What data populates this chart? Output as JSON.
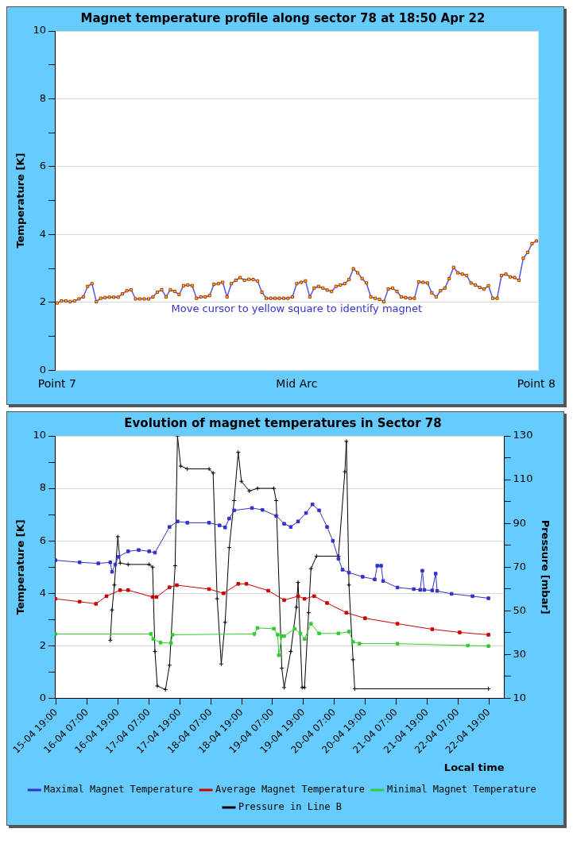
{
  "chart_data": [
    {
      "type": "line",
      "title": "Magnet temperature profile along sector 78 at 18:50 Apr 22",
      "ylabel": "Temperature [K]",
      "categories": [
        "Point 7",
        null,
        null,
        null,
        null,
        null,
        null,
        null,
        null,
        null,
        null,
        null,
        null,
        null,
        null,
        null,
        null,
        null,
        null,
        null,
        null,
        null,
        null,
        null,
        null,
        null,
        null,
        null,
        null,
        null,
        null,
        null,
        null,
        null,
        null,
        null,
        null,
        null,
        null,
        null,
        null,
        null,
        null,
        null,
        null,
        null,
        null,
        null,
        null,
        null,
        null,
        null,
        null,
        null,
        null,
        "Mid Arc",
        null,
        null,
        null,
        null,
        null,
        null,
        null,
        null,
        null,
        null,
        null,
        null,
        null,
        null,
        null,
        null,
        null,
        null,
        null,
        null,
        null,
        null,
        null,
        null,
        null,
        null,
        null,
        null,
        null,
        null,
        null,
        null,
        null,
        null,
        null,
        null,
        null,
        null,
        null,
        null,
        null,
        null,
        null,
        null,
        null,
        null,
        null,
        null,
        null,
        null,
        null,
        null,
        null,
        null,
        "Point 8"
      ],
      "series": [
        {
          "color": "#ffcc00",
          "values": [
            1.98,
            2.04,
            2.04,
            2.02,
            2.04,
            2.1,
            2.16,
            2.47,
            2.55,
            2.02,
            2.12,
            2.14,
            2.15,
            2.15,
            2.15,
            2.25,
            2.34,
            2.37,
            2.1,
            2.1,
            2.1,
            2.1,
            2.16,
            2.3,
            2.37,
            2.16,
            2.37,
            2.32,
            2.23,
            2.49,
            2.51,
            2.49,
            2.12,
            2.16,
            2.16,
            2.2,
            2.53,
            2.55,
            2.59,
            2.16,
            2.55,
            2.65,
            2.73,
            2.65,
            2.68,
            2.67,
            2.63,
            2.3,
            2.12,
            2.12,
            2.12,
            2.12,
            2.12,
            2.12,
            2.16,
            2.55,
            2.59,
            2.63,
            2.16,
            2.42,
            2.47,
            2.42,
            2.36,
            2.32,
            2.47,
            2.51,
            2.55,
            2.67,
            2.99,
            2.87,
            2.7,
            2.57,
            2.16,
            2.12,
            2.09,
            2.02,
            2.39,
            2.42,
            2.32,
            2.16,
            2.14,
            2.12,
            2.12,
            2.6,
            2.59,
            2.57,
            2.28,
            2.16,
            2.34,
            2.42,
            2.7,
            3.03,
            2.87,
            2.83,
            2.79,
            2.57,
            2.51,
            2.44,
            2.39,
            2.49,
            2.12,
            2.12,
            2.79,
            2.83,
            2.75,
            2.73,
            2.65,
            3.3,
            3.47,
            3.73,
            3.81
          ]
        }
      ],
      "ylim": [
        0,
        10
      ],
      "yticks": [
        0,
        {
          "value": 1,
          "label": null
        },
        2,
        {
          "value": 3,
          "label": null
        },
        4,
        {
          "value": 5,
          "label": null
        },
        6,
        {
          "value": 7,
          "label": null
        },
        8,
        {
          "value": 9,
          "label": null
        },
        10
      ],
      "grid": "y",
      "marker": "square",
      "annotations": [
        "Move cursor to yellow square to identify magnet"
      ]
    },
    {
      "type": "line",
      "title": "Evolution of magnet temperatures in Sector 78",
      "xlabel": "Local time",
      "ylabel": "Temperature [K]",
      "y2label": "Pressure [mbar]",
      "legend": "bottom",
      "grid": "y",
      "marker": "square",
      "xlim": [
        "--04-15T18:30",
        "--04-23T01:00"
      ],
      "xticks": [
        {
          "value": "--04-15T19:00",
          "label": "15-04 19:00"
        },
        {
          "value": "--04-16T07:00",
          "label": "16-04 07:00"
        },
        {
          "value": "--04-16T19:00",
          "label": "16-04 19:00"
        },
        {
          "value": "--04-17T07:00",
          "label": "17-04 07:00"
        },
        {
          "value": "--04-17T19:00",
          "label": "17-04 19:00"
        },
        {
          "value": "--04-18T07:00",
          "label": "18-04 07:00"
        },
        {
          "value": "--04-18T19:00",
          "label": "18-04 19:00"
        },
        {
          "value": "--04-19T07:00",
          "label": "19-04 07:00"
        },
        {
          "value": "--04-19T19:00",
          "label": "19-04 19:00"
        },
        {
          "value": "--04-20T07:00",
          "label": "20-04 07:00"
        },
        {
          "value": "--04-20T19:00",
          "label": "20-04 19:00"
        },
        {
          "value": "--04-21T07:00",
          "label": "21-04 07:00"
        },
        {
          "value": "--04-21T19:00",
          "label": "21-04 19:00"
        },
        {
          "value": "--04-22T07:00",
          "label": "22-04 07:00"
        },
        {
          "value": "--04-22T19:00",
          "label": "22-04 19:00"
        }
      ],
      "ylim": [
        0,
        10
      ],
      "yticks": [
        0,
        {
          "value": 1,
          "label": null
        },
        2,
        {
          "value": 3,
          "label": null
        },
        4,
        {
          "value": 5,
          "label": null
        },
        6,
        {
          "value": 7,
          "label": null
        },
        8,
        {
          "value": 9,
          "label": null
        },
        10
      ],
      "y2lim": [
        10,
        130
      ],
      "y2ticks": [
        10,
        {
          "value": 20,
          "label": null
        },
        30,
        {
          "value": 40,
          "label": null
        },
        50,
        {
          "value": 60,
          "label": null
        },
        70,
        {
          "value": 80,
          "label": null
        },
        90,
        {
          "value": 100,
          "label": null
        },
        110,
        {
          "value": 120,
          "label": null
        },
        130
      ],
      "series": [
        {
          "name": "Maximal Magnet Temperature",
          "color": "#3333cc",
          "x": [
            "--04-15T18:40",
            "--04-16T04:05",
            "--04-16T11:20",
            "--04-16T16:00",
            "--04-16T16:40",
            "--04-16T17:55",
            "--04-16T19:10",
            "--04-16T22:55",
            "--04-17T03:00",
            "--04-17T07:05",
            "--04-17T09:20",
            "--04-17T15:00",
            "--04-17T18:05",
            "--04-17T21:55",
            "--04-18T06:20",
            "--04-18T10:25",
            "--04-18T12:35",
            "--04-18T14:10",
            "--04-18T16:05",
            "--04-18T23:00",
            "--04-19T03:05",
            "--04-19T08:25",
            "--04-19T11:30",
            "--04-19T14:05",
            "--04-19T16:55",
            "--04-19T20:00",
            "--04-19T22:30",
            "--04-20T01:05",
            "--04-20T04:10",
            "--04-20T06:25",
            "--04-20T08:35",
            "--04-20T10:10",
            "--04-20T12:40",
            "--04-20T18:00",
            "--04-20T22:40",
            "--04-20T23:40",
            "--04-21T01:10",
            "--04-21T01:55",
            "--04-21T07:30",
            "--04-21T13:50",
            "--04-21T16:20",
            "--04-21T17:10",
            "--04-21T17:55",
            "--04-21T21:00",
            "--04-21T22:20",
            "--04-21T22:55",
            "--04-22T04:30",
            "--04-22T12:40",
            "--04-22T18:50"
          ],
          "values": [
            5.26,
            5.18,
            5.14,
            5.18,
            4.82,
            5.1,
            5.39,
            5.6,
            5.65,
            5.6,
            5.55,
            6.53,
            6.74,
            6.69,
            6.69,
            6.59,
            6.51,
            6.85,
            7.16,
            7.25,
            7.18,
            6.95,
            6.65,
            6.53,
            6.74,
            7.06,
            7.39,
            7.16,
            6.53,
            6.0,
            5.32,
            4.9,
            4.79,
            4.63,
            4.53,
            5.05,
            5.05,
            4.47,
            4.22,
            4.16,
            4.13,
            4.86,
            4.13,
            4.11,
            4.75,
            4.09,
            3.98,
            3.89,
            3.81
          ]
        },
        {
          "name": "Average Magnet Temperature",
          "color": "#cc0000",
          "x": [
            "--04-15T18:40",
            "--04-16T04:05",
            "--04-16T10:25",
            "--04-16T14:30",
            "--04-16T19:50",
            "--04-16T22:55",
            "--04-17T08:25",
            "--04-17T09:55",
            "--04-17T15:00",
            "--04-17T17:50",
            "--04-18T06:20",
            "--04-18T12:00",
            "--04-18T17:40",
            "--04-18T20:50",
            "--04-19T05:20",
            "--04-19T11:30",
            "--04-19T16:55",
            "--04-19T19:25",
            "--04-19T23:10",
            "--04-20T04:10",
            "--04-20T11:40",
            "--04-20T18:55",
            "--04-21T07:30",
            "--04-21T21:00",
            "--04-22T07:40",
            "--04-22T18:50"
          ],
          "values": [
            3.79,
            3.68,
            3.6,
            3.89,
            4.12,
            4.12,
            3.86,
            3.86,
            4.23,
            4.31,
            4.16,
            4.0,
            4.36,
            4.36,
            4.1,
            3.74,
            3.89,
            3.79,
            3.89,
            3.63,
            3.26,
            3.05,
            2.84,
            2.63,
            2.51,
            2.42
          ]
        },
        {
          "name": "Minimal Magnet Temperature",
          "color": "#33cc33",
          "x": [
            "--04-15T18:40",
            "--04-17T07:45",
            "--04-17T08:40",
            "--04-17T11:30",
            "--04-17T15:35",
            "--04-17T16:10",
            "--04-18T23:55",
            "--04-19T01:10",
            "--04-19T07:30",
            "--04-19T09:00",
            "--04-19T09:25",
            "--04-19T10:35",
            "--04-19T11:30",
            "--04-19T15:35",
            "--04-19T17:50",
            "--04-19T19:25",
            "--04-19T21:55",
            "--04-20T01:05",
            "--04-20T08:35",
            "--04-20T12:40",
            "--04-20T14:15",
            "--04-20T16:45",
            "--04-21T07:30",
            "--04-22T10:50",
            "--04-22T18:50"
          ],
          "values": [
            2.45,
            2.45,
            2.26,
            2.12,
            2.1,
            2.42,
            2.45,
            2.68,
            2.65,
            2.42,
            1.64,
            2.37,
            2.37,
            2.65,
            2.47,
            2.26,
            2.84,
            2.47,
            2.47,
            2.54,
            2.15,
            2.08,
            2.08,
            2.01,
            1.99
          ]
        },
        {
          "name": "Pressure in Line B",
          "color": "#000000",
          "axis": "y2",
          "marker": "cross",
          "x": [
            "--04-16T16:00",
            "--04-16T16:40",
            "--04-16T17:35",
            "--04-16T18:55",
            "--04-16T19:50",
            "--04-16T22:55",
            "--04-17T07:05",
            "--04-17T08:25",
            "--04-17T09:20",
            "--04-17T10:15",
            "--04-17T13:25",
            "--04-17T15:00",
            "--04-17T17:10",
            "--04-17T18:05",
            "--04-17T19:20",
            "--04-17T21:55",
            "--04-18T06:20",
            "--04-18T07:55",
            "--04-18T09:30",
            "--04-18T11:05",
            "--04-18T12:35",
            "--04-18T14:10",
            "--04-18T16:05",
            "--04-18T17:40",
            "--04-18T18:55",
            "--04-18T22:00",
            "--04-19T01:10",
            "--04-19T07:30",
            "--04-19T08:25",
            "--04-19T10:35",
            "--04-19T11:30",
            "--04-19T14:05",
            "--04-19T16:15",
            "--04-19T16:55",
            "--04-19T18:30",
            "--04-19T19:25",
            "--04-19T21:00",
            "--04-19T21:55",
            "--04-20T00:05",
            "--04-20T08:35",
            "--04-20T11:05",
            "--04-20T11:40",
            "--04-20T12:40",
            "--04-20T14:15",
            "--04-20T14:55",
            "--04-22T18:50"
          ],
          "values": [
            36.5,
            50.4,
            61.8,
            83.9,
            71.8,
            71.2,
            71.2,
            70.0,
            31.4,
            15.6,
            14.0,
            25.1,
            70.6,
            130,
            116.2,
            114.9,
            114.9,
            113.0,
            55.5,
            25.7,
            44.7,
            78.9,
            100.4,
            122.5,
            109.2,
            104.8,
            106.0,
            106.0,
            100.4,
            23.8,
            14.9,
            31.4,
            51.6,
            63.0,
            14.9,
            14.9,
            49.1,
            69.3,
            75.0,
            75.0,
            113.6,
            127.5,
            61.8,
            27.6,
            14.3,
            14.3
          ]
        }
      ]
    }
  ]
}
